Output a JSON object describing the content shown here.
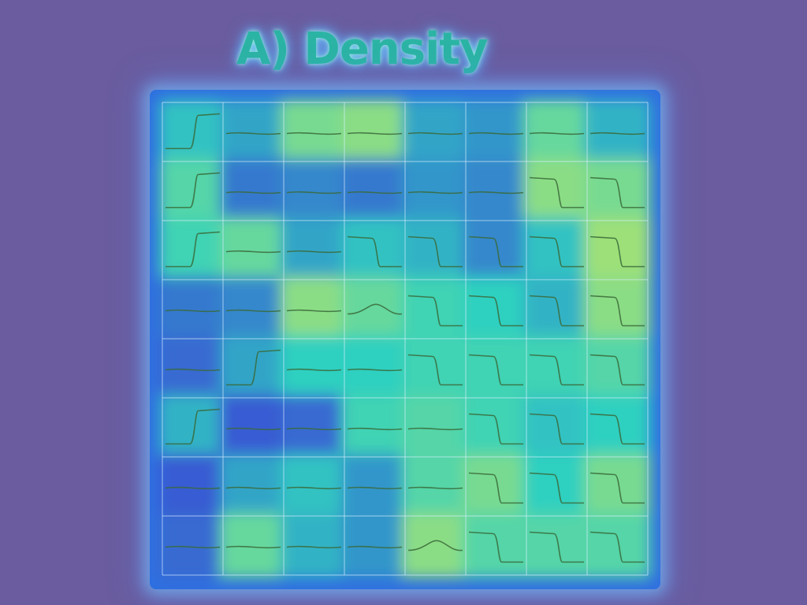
{
  "chart_data": {
    "type": "heatmap",
    "title": "A) Density",
    "rows": 8,
    "cols": 8,
    "intensity": [
      [
        0.45,
        0.35,
        0.7,
        0.75,
        0.35,
        0.3,
        0.65,
        0.4
      ],
      [
        0.6,
        0.2,
        0.25,
        0.2,
        0.3,
        0.25,
        0.75,
        0.7
      ],
      [
        0.55,
        0.65,
        0.35,
        0.45,
        0.4,
        0.25,
        0.45,
        0.8
      ],
      [
        0.2,
        0.25,
        0.75,
        0.65,
        0.55,
        0.5,
        0.4,
        0.75
      ],
      [
        0.15,
        0.35,
        0.5,
        0.5,
        0.55,
        0.55,
        0.55,
        0.6
      ],
      [
        0.4,
        0.1,
        0.15,
        0.55,
        0.6,
        0.55,
        0.45,
        0.5
      ],
      [
        0.1,
        0.35,
        0.45,
        0.3,
        0.6,
        0.7,
        0.5,
        0.7
      ],
      [
        0.15,
        0.65,
        0.4,
        0.3,
        0.75,
        0.6,
        0.6,
        0.6
      ]
    ],
    "curve_shape": [
      [
        "rise",
        "flat",
        "flat",
        "flat",
        "flat",
        "flat",
        "flat",
        "flat"
      ],
      [
        "rise",
        "flat",
        "flat",
        "flat",
        "flat",
        "flat",
        "fall",
        "fall"
      ],
      [
        "rise",
        "flat",
        "flat",
        "fall",
        "fall",
        "fall",
        "fall",
        "fall"
      ],
      [
        "flat",
        "flat",
        "flat",
        "bump",
        "fall",
        "fall",
        "fall",
        "fall"
      ],
      [
        "flat",
        "rise",
        "flat",
        "flat",
        "fall",
        "fall",
        "fall",
        "fall"
      ],
      [
        "rise",
        "flat",
        "flat",
        "flat",
        "flat",
        "fall",
        "fall",
        "fall"
      ],
      [
        "flat",
        "flat",
        "flat",
        "flat",
        "flat",
        "fall",
        "fall",
        "fall"
      ],
      [
        "flat",
        "flat",
        "flat",
        "flat",
        "bump",
        "fall",
        "fall",
        "fall"
      ]
    ],
    "colors": {
      "low": "#3a3fd8",
      "mid": "#2fd0c0",
      "high": "#e6ea4a",
      "background": "#6a5c9e",
      "border": "#2f6fe0",
      "curve": "#3a6a3a"
    }
  }
}
